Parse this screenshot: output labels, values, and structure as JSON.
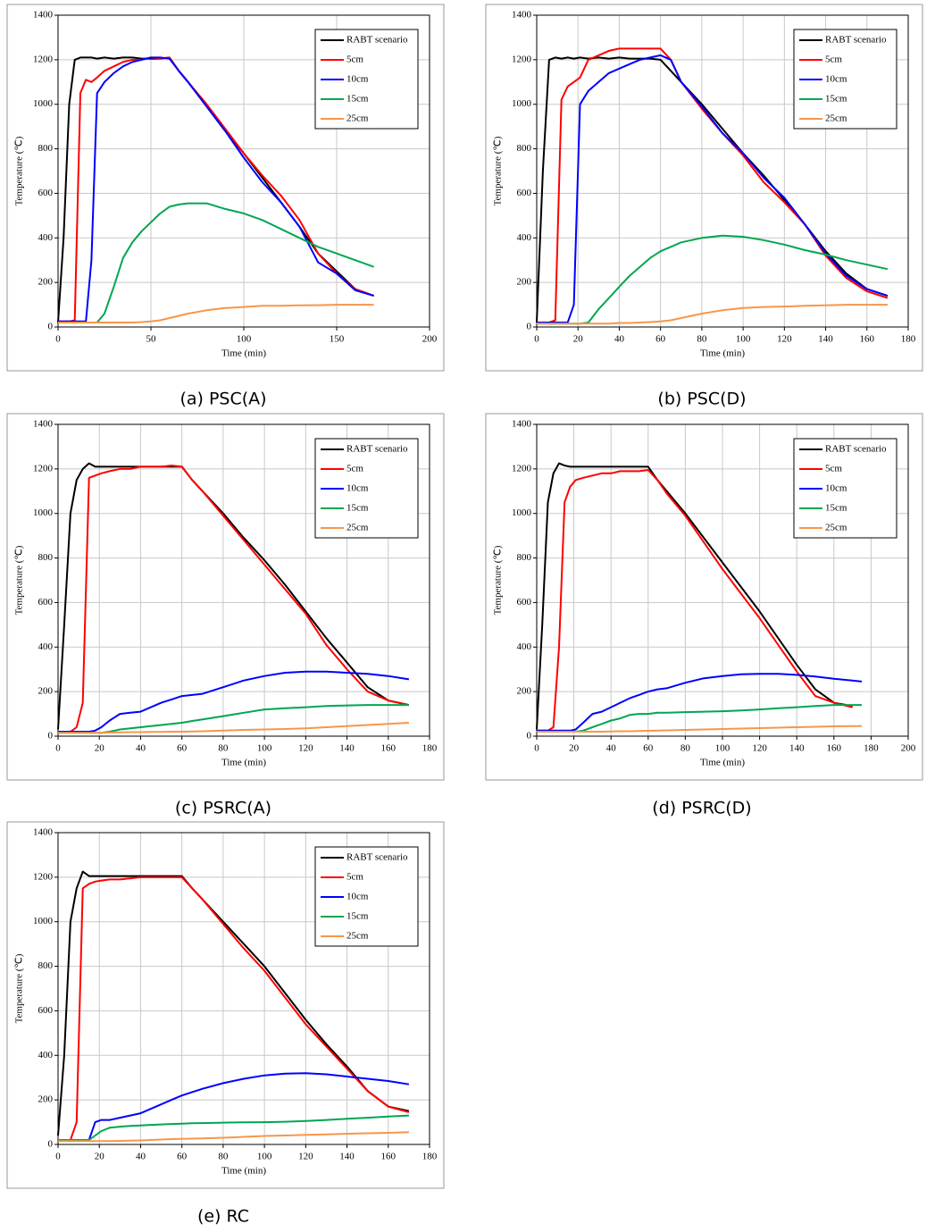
{
  "chart_data": [
    {
      "type": "line",
      "caption": "(a)  PSC(A)",
      "xlabel": "Time (min)",
      "ylabel": "Temperature (℃)",
      "xlim": [
        0,
        200
      ],
      "xticks": [
        0,
        50,
        100,
        150,
        200
      ],
      "ylim": [
        0,
        1400
      ],
      "yticks": [
        0,
        200,
        400,
        600,
        800,
        1000,
        1200,
        1400
      ],
      "grid": true,
      "legend": "upper right",
      "x": [
        0,
        3,
        6,
        9,
        12,
        15,
        18,
        21,
        25,
        30,
        35,
        40,
        45,
        50,
        55,
        60,
        65,
        70,
        80,
        90,
        100,
        110,
        120,
        130,
        140,
        150,
        160,
        170
      ],
      "series": [
        {
          "name": "RABT scenario",
          "color": "#000000",
          "values": [
            20,
            400,
            1000,
            1200,
            1210,
            1210,
            1210,
            1205,
            1210,
            1205,
            1210,
            1210,
            1205,
            1205,
            1205,
            1210,
            1150,
            1100,
            990,
            880,
            780,
            670,
            560,
            450,
            330,
            250,
            170,
            140
          ]
        },
        {
          "name": "5cm",
          "color": "#ff0000",
          "values": [
            25,
            25,
            25,
            30,
            1050,
            1110,
            1100,
            1120,
            1150,
            1170,
            1190,
            1200,
            1200,
            1210,
            1205,
            1210,
            1150,
            1100,
            1000,
            890,
            780,
            680,
            590,
            480,
            330,
            240,
            170,
            140
          ]
        },
        {
          "name": "10cm",
          "color": "#0000ff",
          "values": [
            25,
            25,
            25,
            25,
            25,
            25,
            300,
            1050,
            1100,
            1140,
            1170,
            1190,
            1200,
            1210,
            1210,
            1205,
            1150,
            1100,
            990,
            880,
            760,
            650,
            560,
            450,
            290,
            240,
            165,
            140
          ]
        },
        {
          "name": "15cm",
          "color": "#00a651",
          "values": [
            20,
            20,
            20,
            20,
            20,
            20,
            20,
            20,
            60,
            180,
            310,
            380,
            430,
            470,
            510,
            540,
            550,
            555,
            555,
            530,
            510,
            480,
            440,
            400,
            360,
            330,
            300,
            270
          ]
        },
        {
          "name": "25cm",
          "color": "#f7964a",
          "values": [
            20,
            20,
            20,
            20,
            20,
            20,
            20,
            20,
            20,
            20,
            20,
            20,
            22,
            25,
            30,
            40,
            50,
            60,
            75,
            85,
            90,
            95,
            95,
            97,
            98,
            100,
            100,
            100
          ]
        }
      ]
    },
    {
      "type": "line",
      "caption": "(b)  PSC(D)",
      "xlabel": "Time (min)",
      "ylabel": "Temperature (℃)",
      "xlim": [
        0,
        180
      ],
      "xticks": [
        0,
        20,
        40,
        60,
        80,
        100,
        120,
        140,
        160,
        180
      ],
      "ylim": [
        0,
        1400
      ],
      "yticks": [
        0,
        200,
        400,
        600,
        800,
        1000,
        1200,
        1400
      ],
      "grid": true,
      "legend": "upper right",
      "x": [
        0,
        3,
        6,
        9,
        12,
        15,
        18,
        21,
        25,
        30,
        35,
        40,
        45,
        50,
        55,
        60,
        65,
        70,
        80,
        90,
        100,
        110,
        120,
        130,
        140,
        150,
        160,
        170
      ],
      "series": [
        {
          "name": "RABT scenario",
          "color": "#000000",
          "values": [
            20,
            700,
            1200,
            1210,
            1205,
            1210,
            1205,
            1210,
            1205,
            1210,
            1205,
            1210,
            1205,
            1205,
            1205,
            1200,
            1150,
            1100,
            1000,
            890,
            780,
            680,
            570,
            460,
            340,
            240,
            170,
            140
          ]
        },
        {
          "name": "5cm",
          "color": "#ff0000",
          "values": [
            20,
            20,
            20,
            30,
            1020,
            1080,
            1100,
            1120,
            1200,
            1220,
            1240,
            1250,
            1250,
            1250,
            1250,
            1250,
            1200,
            1100,
            980,
            870,
            770,
            650,
            560,
            460,
            320,
            220,
            160,
            130
          ]
        },
        {
          "name": "10cm",
          "color": "#0000ff",
          "values": [
            20,
            20,
            20,
            20,
            20,
            20,
            100,
            1000,
            1060,
            1100,
            1140,
            1160,
            1180,
            1200,
            1210,
            1220,
            1200,
            1100,
            990,
            870,
            780,
            670,
            580,
            460,
            330,
            230,
            170,
            140
          ]
        },
        {
          "name": "15cm",
          "color": "#00a651",
          "values": [
            15,
            15,
            15,
            15,
            15,
            15,
            15,
            15,
            20,
            80,
            130,
            180,
            230,
            270,
            310,
            340,
            360,
            380,
            400,
            410,
            405,
            390,
            370,
            345,
            325,
            300,
            280,
            260
          ]
        },
        {
          "name": "25cm",
          "color": "#f7964a",
          "values": [
            15,
            15,
            15,
            15,
            15,
            15,
            15,
            15,
            15,
            15,
            15,
            18,
            18,
            20,
            22,
            25,
            30,
            40,
            60,
            75,
            85,
            90,
            92,
            95,
            97,
            100,
            100,
            100
          ]
        }
      ]
    },
    {
      "type": "line",
      "caption": "(c)  PSRC(A)",
      "xlabel": "Time (min)",
      "ylabel": "Temperature (℃)",
      "xlim": [
        0,
        180
      ],
      "xticks": [
        0,
        20,
        40,
        60,
        80,
        100,
        120,
        140,
        160,
        180
      ],
      "ylim": [
        0,
        1400
      ],
      "yticks": [
        0,
        200,
        400,
        600,
        800,
        1000,
        1200,
        1400
      ],
      "grid": true,
      "legend": "upper right",
      "x": [
        0,
        3,
        6,
        9,
        12,
        15,
        18,
        21,
        25,
        30,
        35,
        40,
        45,
        50,
        55,
        60,
        65,
        70,
        80,
        90,
        100,
        110,
        120,
        130,
        140,
        150,
        160,
        170
      ],
      "series": [
        {
          "name": "RABT scenario",
          "color": "#000000",
          "values": [
            30,
            500,
            1000,
            1150,
            1200,
            1225,
            1210,
            1210,
            1210,
            1210,
            1210,
            1210,
            1210,
            1210,
            1210,
            1210,
            1150,
            1100,
            1000,
            890,
            790,
            680,
            560,
            440,
            330,
            220,
            160,
            140
          ]
        },
        {
          "name": "5cm",
          "color": "#ff0000",
          "values": [
            20,
            20,
            20,
            40,
            150,
            1160,
            1170,
            1180,
            1190,
            1200,
            1200,
            1210,
            1210,
            1210,
            1215,
            1210,
            1150,
            1100,
            990,
            880,
            770,
            660,
            550,
            410,
            300,
            200,
            160,
            140
          ]
        },
        {
          "name": "10cm",
          "color": "#0000ff",
          "values": [
            20,
            20,
            20,
            20,
            20,
            20,
            25,
            40,
            70,
            100,
            105,
            110,
            130,
            150,
            165,
            180,
            185,
            190,
            220,
            250,
            270,
            285,
            290,
            290,
            285,
            280,
            270,
            255
          ]
        },
        {
          "name": "15cm",
          "color": "#00a651",
          "values": [
            15,
            15,
            15,
            15,
            15,
            15,
            15,
            15,
            20,
            30,
            35,
            40,
            45,
            50,
            55,
            60,
            68,
            75,
            90,
            105,
            120,
            125,
            130,
            135,
            138,
            140,
            140,
            140
          ]
        },
        {
          "name": "25cm",
          "color": "#f7964a",
          "values": [
            15,
            15,
            15,
            15,
            15,
            15,
            15,
            15,
            16,
            17,
            18,
            18,
            19,
            19,
            20,
            20,
            21,
            22,
            25,
            28,
            30,
            32,
            35,
            40,
            45,
            50,
            55,
            60
          ]
        }
      ]
    },
    {
      "type": "line",
      "caption": "(d)  PSRC(D)",
      "xlabel": "Time (min)",
      "ylabel": "Temperature (℃)",
      "xlim": [
        0,
        200
      ],
      "xticks": [
        0,
        20,
        40,
        60,
        80,
        100,
        120,
        140,
        160,
        180,
        200
      ],
      "ylim": [
        0,
        1400
      ],
      "yticks": [
        0,
        200,
        400,
        600,
        800,
        1000,
        1200,
        1400
      ],
      "grid": true,
      "legend": "upper right",
      "x": [
        0,
        3,
        6,
        9,
        12,
        15,
        18,
        21,
        25,
        30,
        35,
        40,
        45,
        50,
        55,
        60,
        65,
        70,
        80,
        90,
        100,
        110,
        120,
        130,
        140,
        150,
        160,
        170,
        175
      ],
      "series": [
        {
          "name": "RABT scenario",
          "color": "#000000",
          "values": [
            30,
            500,
            1050,
            1180,
            1225,
            1215,
            1210,
            1210,
            1210,
            1210,
            1210,
            1210,
            1210,
            1210,
            1210,
            1210,
            1150,
            1100,
            1000,
            890,
            780,
            670,
            560,
            440,
            320,
            210,
            150,
            135,
            null
          ]
        },
        {
          "name": "5cm",
          "color": "#ff0000",
          "values": [
            25,
            25,
            25,
            40,
            400,
            1050,
            1120,
            1150,
            1160,
            1170,
            1180,
            1180,
            1190,
            1190,
            1190,
            1195,
            1150,
            1090,
            990,
            870,
            750,
            640,
            530,
            410,
            290,
            180,
            150,
            130,
            null
          ]
        },
        {
          "name": "10cm",
          "color": "#0000ff",
          "values": [
            25,
            25,
            25,
            25,
            25,
            25,
            25,
            30,
            60,
            100,
            110,
            130,
            150,
            170,
            185,
            200,
            210,
            215,
            240,
            260,
            270,
            278,
            280,
            280,
            275,
            268,
            258,
            250,
            245
          ]
        },
        {
          "name": "15cm",
          "color": "#00a651",
          "values": [
            20,
            20,
            20,
            20,
            20,
            20,
            20,
            20,
            25,
            40,
            55,
            70,
            80,
            95,
            100,
            100,
            105,
            105,
            108,
            110,
            112,
            115,
            120,
            125,
            130,
            135,
            140,
            140,
            140
          ]
        },
        {
          "name": "25cm",
          "color": "#f7964a",
          "values": [
            20,
            20,
            20,
            20,
            20,
            20,
            20,
            20,
            20,
            20,
            20,
            21,
            22,
            22,
            23,
            24,
            25,
            26,
            28,
            30,
            32,
            34,
            36,
            38,
            40,
            42,
            44,
            45,
            45
          ]
        }
      ]
    },
    {
      "type": "line",
      "caption": "(e)  RC",
      "xlabel": "Time (min)",
      "ylabel": "Temperature (℃)",
      "xlim": [
        0,
        180
      ],
      "xticks": [
        0,
        20,
        40,
        60,
        80,
        100,
        120,
        140,
        160,
        180
      ],
      "ylim": [
        0,
        1400
      ],
      "yticks": [
        0,
        200,
        400,
        600,
        800,
        1000,
        1200,
        1400
      ],
      "grid": true,
      "legend": "upper right",
      "x": [
        0,
        3,
        6,
        9,
        12,
        15,
        18,
        21,
        25,
        30,
        35,
        40,
        45,
        50,
        55,
        60,
        65,
        70,
        80,
        90,
        100,
        110,
        120,
        130,
        140,
        150,
        160,
        170
      ],
      "series": [
        {
          "name": "RABT scenario",
          "color": "#000000",
          "values": [
            40,
            400,
            1000,
            1150,
            1225,
            1205,
            1205,
            1205,
            1205,
            1205,
            1205,
            1205,
            1205,
            1205,
            1205,
            1205,
            1150,
            1100,
            1000,
            900,
            800,
            680,
            560,
            450,
            350,
            240,
            170,
            150
          ]
        },
        {
          "name": "5cm",
          "color": "#ff0000",
          "values": [
            20,
            20,
            20,
            100,
            1150,
            1170,
            1180,
            1185,
            1190,
            1190,
            1195,
            1200,
            1200,
            1200,
            1200,
            1200,
            1150,
            1100,
            990,
            880,
            780,
            660,
            540,
            440,
            340,
            240,
            170,
            145
          ]
        },
        {
          "name": "10cm",
          "color": "#0000ff",
          "values": [
            20,
            20,
            20,
            20,
            20,
            20,
            100,
            110,
            110,
            120,
            130,
            140,
            160,
            180,
            200,
            220,
            235,
            250,
            275,
            295,
            310,
            318,
            320,
            315,
            305,
            295,
            285,
            270
          ]
        },
        {
          "name": "15cm",
          "color": "#00a651",
          "values": [
            20,
            20,
            20,
            20,
            20,
            20,
            40,
            60,
            75,
            80,
            83,
            85,
            88,
            90,
            92,
            93,
            95,
            96,
            98,
            99,
            100,
            102,
            105,
            110,
            115,
            120,
            125,
            130
          ]
        },
        {
          "name": "25cm",
          "color": "#f7964a",
          "values": [
            15,
            15,
            15,
            15,
            15,
            15,
            15,
            15,
            15,
            16,
            17,
            18,
            20,
            22,
            24,
            25,
            26,
            27,
            30,
            34,
            38,
            40,
            43,
            45,
            48,
            50,
            52,
            55
          ]
        }
      ]
    }
  ]
}
